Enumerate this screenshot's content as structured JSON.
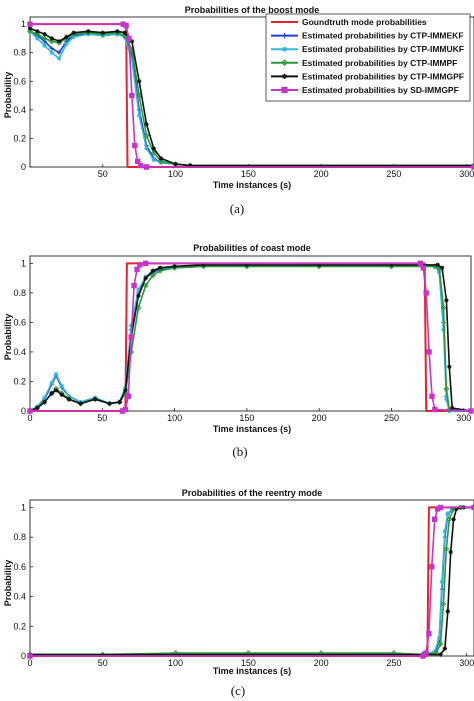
{
  "legend": {
    "entries": [
      {
        "label": "Goundtruth mode probabilities",
        "color": "#e8212a",
        "marker": "none"
      },
      {
        "label": "Estimated probabilities by CTP-IMMEKF",
        "color": "#1f3fd6",
        "marker": "plus"
      },
      {
        "label": "Estimated probabilities by CTP-IMMUKF",
        "color": "#33b7d9",
        "marker": "star"
      },
      {
        "label": "Estimated probabilities by CTP-IMMPF",
        "color": "#2a9a35",
        "marker": "diamond"
      },
      {
        "label": "Estimated probabilities by CTP-IMMGPF",
        "color": "#111111",
        "marker": "star"
      },
      {
        "label": "Estimated probabilities by SD-IMMGPF",
        "color": "#c535c9",
        "marker": "square"
      }
    ]
  },
  "chart_data": [
    {
      "type": "line",
      "title": "Probabilities of the boost mode",
      "xlabel": "Time instances (s)",
      "ylabel": "Probability",
      "caption": "(a)",
      "xlim": [
        0,
        305
      ],
      "ylim": [
        0,
        1.05
      ],
      "xticks": [
        50,
        100,
        150,
        200,
        250,
        300
      ],
      "yticks": [
        0,
        0.2,
        0.4,
        0.6,
        0.8,
        1
      ],
      "grid": false,
      "legend_position": "top-right",
      "series": [
        {
          "name": "Goundtruth mode probabilities",
          "color": "#e8212a",
          "x": [
            0,
            66,
            67,
            305
          ],
          "y": [
            1,
            1,
            0,
            0
          ]
        },
        {
          "name": "Estimated probabilities by CTP-IMMEKF",
          "color": "#1f3fd6",
          "x": [
            0,
            5,
            10,
            15,
            20,
            25,
            30,
            40,
            50,
            60,
            65,
            70,
            75,
            80,
            85,
            90,
            100,
            110,
            305
          ],
          "y": [
            0.95,
            0.92,
            0.88,
            0.83,
            0.8,
            0.88,
            0.92,
            0.93,
            0.92,
            0.93,
            0.92,
            0.78,
            0.4,
            0.15,
            0.06,
            0.03,
            0.02,
            0.01,
            0.01
          ]
        },
        {
          "name": "Estimated probabilities by CTP-IMMUKF",
          "color": "#33b7d9",
          "x": [
            0,
            5,
            10,
            15,
            20,
            25,
            30,
            40,
            50,
            60,
            65,
            70,
            75,
            80,
            85,
            90,
            100,
            110,
            305
          ],
          "y": [
            0.95,
            0.9,
            0.85,
            0.8,
            0.76,
            0.86,
            0.91,
            0.93,
            0.92,
            0.93,
            0.91,
            0.75,
            0.36,
            0.13,
            0.05,
            0.03,
            0.02,
            0.01,
            0.01
          ]
        },
        {
          "name": "Estimated probabilities by CTP-IMMPF",
          "color": "#2a9a35",
          "x": [
            0,
            5,
            10,
            15,
            20,
            25,
            30,
            40,
            50,
            60,
            65,
            70,
            75,
            80,
            85,
            90,
            100,
            110,
            305
          ],
          "y": [
            0.95,
            0.93,
            0.9,
            0.88,
            0.87,
            0.9,
            0.93,
            0.94,
            0.93,
            0.94,
            0.92,
            0.82,
            0.5,
            0.22,
            0.1,
            0.04,
            0.02,
            0.01,
            0.01
          ]
        },
        {
          "name": "Estimated probabilities by CTP-IMMGPF",
          "color": "#111111",
          "x": [
            0,
            5,
            10,
            15,
            20,
            25,
            30,
            40,
            50,
            60,
            65,
            70,
            75,
            80,
            85,
            90,
            100,
            110,
            305
          ],
          "y": [
            0.97,
            0.95,
            0.93,
            0.9,
            0.88,
            0.91,
            0.94,
            0.95,
            0.94,
            0.95,
            0.94,
            0.88,
            0.6,
            0.3,
            0.13,
            0.06,
            0.02,
            0.01,
            0.01
          ]
        },
        {
          "name": "Estimated probabilities by SD-IMMGPF",
          "color": "#c535c9",
          "x": [
            0,
            64,
            66,
            68,
            70,
            72,
            74,
            76,
            80,
            305
          ],
          "y": [
            1,
            1,
            0.99,
            0.9,
            0.5,
            0.15,
            0.04,
            0.01,
            0,
            0
          ]
        }
      ]
    },
    {
      "type": "line",
      "title": "Probabilities of coast mode",
      "xlabel": "Time instances (s)",
      "ylabel": "Probability",
      "caption": "(b)",
      "xlim": [
        0,
        305
      ],
      "ylim": [
        0,
        1.05
      ],
      "xticks": [
        0,
        50,
        100,
        150,
        200,
        250,
        300
      ],
      "yticks": [
        0,
        0.2,
        0.4,
        0.6,
        0.8,
        1
      ],
      "grid": false,
      "series": [
        {
          "name": "Goundtruth mode probabilities",
          "color": "#e8212a",
          "x": [
            0,
            66,
            67,
            273,
            274,
            305
          ],
          "y": [
            0,
            0,
            1,
            1,
            0,
            0
          ]
        },
        {
          "name": "Estimated probabilities by CTP-IMMEKF",
          "color": "#1f3fd6",
          "x": [
            0,
            5,
            10,
            15,
            18,
            22,
            27,
            35,
            45,
            55,
            62,
            66,
            70,
            75,
            80,
            85,
            90,
            100,
            120,
            150,
            200,
            250,
            280,
            283,
            286,
            288,
            290,
            305
          ],
          "y": [
            0,
            0.03,
            0.08,
            0.18,
            0.24,
            0.16,
            0.1,
            0.06,
            0.09,
            0.05,
            0.06,
            0.15,
            0.55,
            0.8,
            0.9,
            0.94,
            0.96,
            0.97,
            0.98,
            0.98,
            0.98,
            0.98,
            0.98,
            0.95,
            0.6,
            0.1,
            0,
            0
          ]
        },
        {
          "name": "Estimated probabilities by CTP-IMMUKF",
          "color": "#33b7d9",
          "x": [
            0,
            5,
            10,
            15,
            18,
            22,
            27,
            35,
            45,
            55,
            62,
            66,
            70,
            75,
            80,
            85,
            90,
            100,
            120,
            150,
            200,
            250,
            280,
            283,
            286,
            288,
            290,
            305
          ],
          "y": [
            0,
            0.03,
            0.09,
            0.19,
            0.25,
            0.17,
            0.1,
            0.06,
            0.09,
            0.05,
            0.06,
            0.16,
            0.58,
            0.82,
            0.91,
            0.95,
            0.97,
            0.97,
            0.98,
            0.98,
            0.98,
            0.98,
            0.98,
            0.94,
            0.55,
            0.08,
            0,
            0
          ]
        },
        {
          "name": "Estimated probabilities by CTP-IMMPF",
          "color": "#2a9a35",
          "x": [
            0,
            5,
            10,
            15,
            18,
            22,
            27,
            35,
            45,
            55,
            62,
            66,
            70,
            75,
            80,
            85,
            90,
            100,
            120,
            150,
            200,
            250,
            280,
            283,
            286,
            288,
            290,
            305
          ],
          "y": [
            0,
            0.02,
            0.06,
            0.12,
            0.15,
            0.12,
            0.08,
            0.05,
            0.08,
            0.05,
            0.06,
            0.12,
            0.4,
            0.7,
            0.85,
            0.92,
            0.95,
            0.97,
            0.98,
            0.98,
            0.98,
            0.98,
            0.98,
            0.97,
            0.7,
            0.15,
            0.01,
            0
          ]
        },
        {
          "name": "Estimated probabilities by CTP-IMMGPF",
          "color": "#111111",
          "x": [
            0,
            5,
            10,
            15,
            18,
            22,
            27,
            35,
            45,
            55,
            62,
            66,
            70,
            75,
            80,
            85,
            90,
            100,
            120,
            150,
            200,
            250,
            282,
            285,
            288,
            290,
            292,
            305
          ],
          "y": [
            0,
            0.02,
            0.06,
            0.12,
            0.14,
            0.11,
            0.08,
            0.05,
            0.08,
            0.05,
            0.06,
            0.14,
            0.5,
            0.78,
            0.9,
            0.95,
            0.97,
            0.98,
            0.99,
            0.99,
            0.99,
            0.99,
            0.99,
            0.97,
            0.75,
            0.3,
            0.02,
            0
          ]
        },
        {
          "name": "Estimated probabilities by SD-IMMGPF",
          "color": "#c535c9",
          "x": [
            0,
            64,
            66,
            68,
            70,
            72,
            74,
            76,
            80,
            270,
            272,
            274,
            276,
            278,
            280,
            305
          ],
          "y": [
            0,
            0,
            0.01,
            0.1,
            0.5,
            0.85,
            0.96,
            0.99,
            1,
            1,
            0.97,
            0.8,
            0.4,
            0.1,
            0.01,
            0
          ]
        }
      ]
    },
    {
      "type": "line",
      "title": "Probabilities of the reentry mode",
      "xlabel": "Time instances (s)",
      "ylabel": "Probability",
      "caption": "(c)",
      "xlim": [
        0,
        305
      ],
      "ylim": [
        0,
        1.05
      ],
      "xticks": [
        0,
        50,
        100,
        150,
        200,
        250,
        300
      ],
      "yticks": [
        0,
        0.2,
        0.4,
        0.6,
        0.8,
        1
      ],
      "grid": false,
      "series": [
        {
          "name": "Goundtruth mode probabilities",
          "color": "#e8212a",
          "x": [
            0,
            273,
            274,
            305
          ],
          "y": [
            0,
            0,
            1,
            1
          ]
        },
        {
          "name": "Estimated probabilities by CTP-IMMEKF",
          "color": "#1f3fd6",
          "x": [
            0,
            270,
            278,
            281,
            283,
            285,
            287,
            290,
            295,
            305
          ],
          "y": [
            0.01,
            0.01,
            0.02,
            0.1,
            0.45,
            0.8,
            0.95,
            0.99,
            1,
            1
          ]
        },
        {
          "name": "Estimated probabilities by CTP-IMMUKF",
          "color": "#33b7d9",
          "x": [
            0,
            270,
            278,
            281,
            283,
            285,
            287,
            290,
            295,
            305
          ],
          "y": [
            0.01,
            0.01,
            0.03,
            0.12,
            0.5,
            0.84,
            0.96,
            0.99,
            1,
            1
          ]
        },
        {
          "name": "Estimated probabilities by CTP-IMMPF",
          "color": "#2a9a35",
          "x": [
            0,
            50,
            100,
            150,
            200,
            250,
            270,
            279,
            282,
            284,
            286,
            288,
            291,
            296,
            305
          ],
          "y": [
            0.01,
            0.01,
            0.02,
            0.02,
            0.02,
            0.02,
            0.01,
            0.02,
            0.08,
            0.35,
            0.72,
            0.92,
            0.99,
            1,
            1
          ]
        },
        {
          "name": "Estimated probabilities by CTP-IMMGPF",
          "color": "#111111",
          "x": [
            0,
            270,
            282,
            285,
            287,
            289,
            291,
            293,
            298,
            305
          ],
          "y": [
            0.01,
            0.01,
            0.01,
            0.05,
            0.3,
            0.7,
            0.92,
            0.99,
            1,
            1
          ]
        },
        {
          "name": "Estimated probabilities by SD-IMMGPF",
          "color": "#c535c9",
          "x": [
            0,
            270,
            272,
            274,
            276,
            278,
            280,
            282,
            305
          ],
          "y": [
            0,
            0,
            0.02,
            0.15,
            0.6,
            0.92,
            0.99,
            1,
            1
          ]
        }
      ]
    }
  ]
}
